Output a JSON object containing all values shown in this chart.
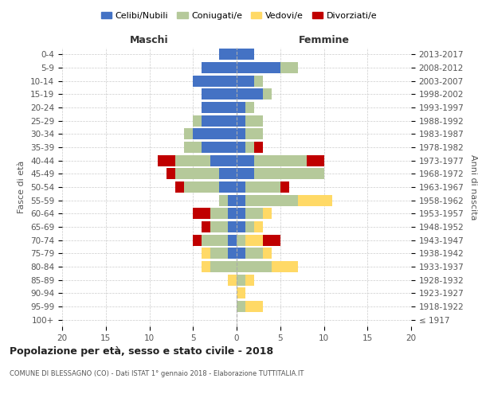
{
  "age_groups": [
    "100+",
    "95-99",
    "90-94",
    "85-89",
    "80-84",
    "75-79",
    "70-74",
    "65-69",
    "60-64",
    "55-59",
    "50-54",
    "45-49",
    "40-44",
    "35-39",
    "30-34",
    "25-29",
    "20-24",
    "15-19",
    "10-14",
    "5-9",
    "0-4"
  ],
  "birth_years": [
    "≤ 1917",
    "1918-1922",
    "1923-1927",
    "1928-1932",
    "1933-1937",
    "1938-1942",
    "1943-1947",
    "1948-1952",
    "1953-1957",
    "1958-1962",
    "1963-1967",
    "1968-1972",
    "1973-1977",
    "1978-1982",
    "1983-1987",
    "1988-1992",
    "1993-1997",
    "1998-2002",
    "2003-2007",
    "2008-2012",
    "2013-2017"
  ],
  "colors": {
    "celibe": "#4472c4",
    "coniugato": "#b5c99a",
    "vedovo": "#ffd966",
    "divorziato": "#c00000"
  },
  "maschi": {
    "celibe": [
      0,
      0,
      0,
      0,
      0,
      1,
      1,
      1,
      1,
      1,
      2,
      2,
      3,
      4,
      5,
      4,
      4,
      4,
      5,
      4,
      2
    ],
    "coniugato": [
      0,
      0,
      0,
      0,
      3,
      2,
      3,
      2,
      2,
      1,
      4,
      5,
      4,
      2,
      1,
      1,
      0,
      0,
      0,
      0,
      0
    ],
    "vedovo": [
      0,
      0,
      0,
      1,
      1,
      1,
      0,
      0,
      0,
      0,
      0,
      0,
      0,
      0,
      0,
      0,
      0,
      0,
      0,
      0,
      0
    ],
    "divorziato": [
      0,
      0,
      0,
      0,
      0,
      0,
      1,
      1,
      2,
      0,
      1,
      1,
      2,
      0,
      0,
      0,
      0,
      0,
      0,
      0,
      0
    ]
  },
  "femmine": {
    "nubile": [
      0,
      0,
      0,
      0,
      0,
      1,
      0,
      1,
      1,
      1,
      1,
      2,
      2,
      1,
      1,
      1,
      1,
      3,
      2,
      5,
      2
    ],
    "coniugata": [
      0,
      1,
      0,
      1,
      4,
      2,
      1,
      1,
      2,
      6,
      4,
      8,
      6,
      1,
      2,
      2,
      1,
      1,
      1,
      2,
      0
    ],
    "vedova": [
      0,
      2,
      1,
      1,
      3,
      1,
      2,
      1,
      1,
      4,
      0,
      0,
      0,
      0,
      0,
      0,
      0,
      0,
      0,
      0,
      0
    ],
    "divorziata": [
      0,
      0,
      0,
      0,
      0,
      0,
      2,
      0,
      0,
      0,
      1,
      0,
      2,
      1,
      0,
      0,
      0,
      0,
      0,
      0,
      0
    ]
  },
  "xlim": 20,
  "title": "Popolazione per età, sesso e stato civile - 2018",
  "subtitle": "COMUNE DI BLESSAGNO (CO) - Dati ISTAT 1° gennaio 2018 - Elaborazione TUTTITALIA.IT",
  "ylabel_left": "Fasce di età",
  "ylabel_right": "Anni di nascita",
  "xlabel_left": "Maschi",
  "xlabel_right": "Femmine",
  "legend_labels": [
    "Celibi/Nubili",
    "Coniugati/e",
    "Vedovi/e",
    "Divorziati/e"
  ],
  "bg_color": "#ffffff",
  "grid_color": "#cccccc"
}
